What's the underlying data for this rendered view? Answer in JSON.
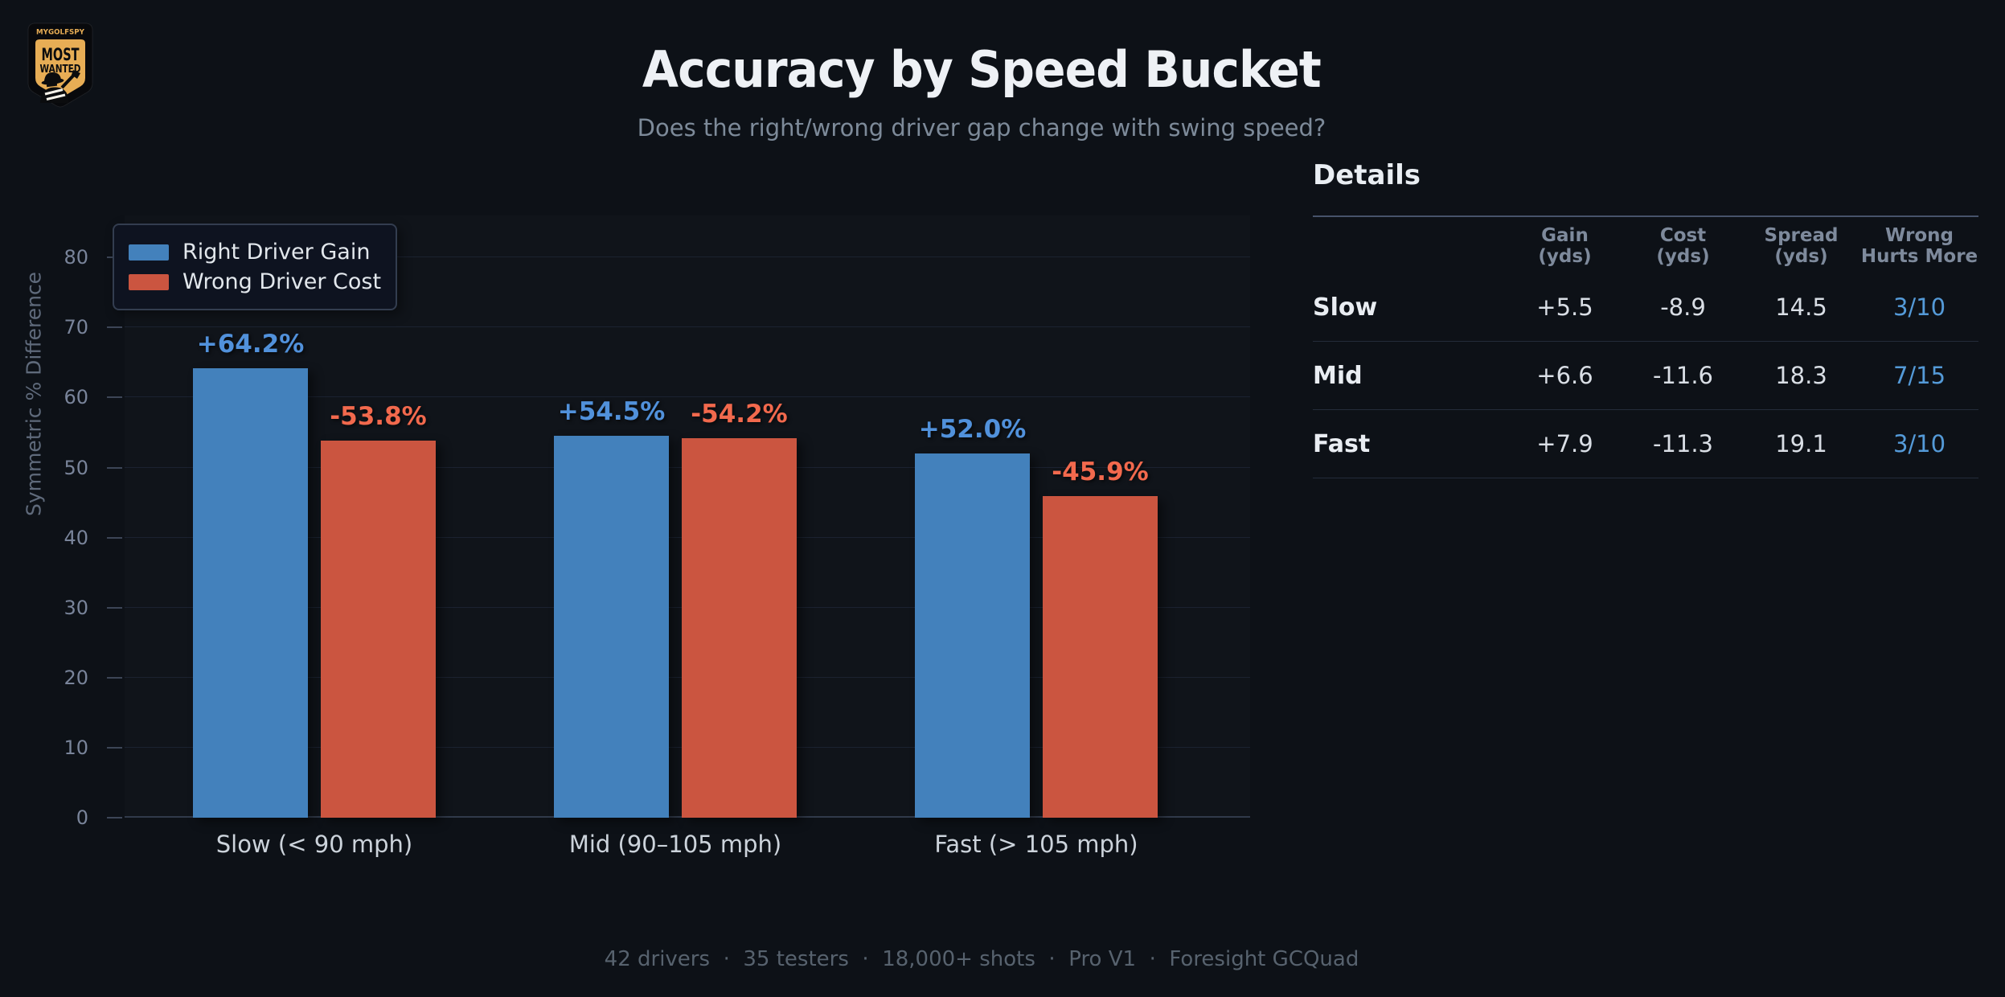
{
  "header": {
    "title": "Accuracy by Speed Bucket",
    "subtitle": "Does the right/wrong driver gap change with swing speed?"
  },
  "logo": {
    "brand": "MYGOLFSPY",
    "line1": "MOST",
    "line2": "WANTED",
    "gold": "#e7ad55"
  },
  "chart_data": {
    "type": "bar",
    "title": "Accuracy by Speed Bucket",
    "subtitle": "Does the right/wrong driver gap change with swing speed?",
    "categories": [
      "Slow (< 90 mph)",
      "Mid (90–105 mph)",
      "Fast (> 105 mph)"
    ],
    "series": [
      {
        "name": "Right Driver Gain",
        "color": "#4381bc",
        "label_color": "#5191db",
        "values": [
          64.2,
          54.5,
          52.0
        ],
        "labels": [
          "+64.2%",
          "+54.5%",
          "+52.0%"
        ]
      },
      {
        "name": "Wrong Driver Cost",
        "color": "#cb5540",
        "label_color": "#f2694d",
        "values": [
          53.8,
          54.2,
          45.9
        ],
        "labels": [
          "-53.8%",
          "-54.2%",
          "-45.9%"
        ]
      }
    ],
    "xlabel": "",
    "ylabel": "Symmetric % Difference",
    "yticks": [
      0,
      10,
      20,
      30,
      40,
      50,
      60,
      70,
      80
    ],
    "ylim": [
      0,
      86
    ],
    "grid": true,
    "legend_position": "upper left"
  },
  "details": {
    "title": "Details",
    "wrong_color": "#549ad8",
    "columns": [
      {
        "line1": "Gain",
        "line2": "(yds)"
      },
      {
        "line1": "Cost",
        "line2": "(yds)"
      },
      {
        "line1": "Spread",
        "line2": "(yds)"
      },
      {
        "line1": "Wrong",
        "line2": "Hurts More"
      }
    ],
    "rows": [
      {
        "label": "Slow",
        "gain": "+5.5",
        "cost": "-8.9",
        "spread": "14.5",
        "wrong_hurts_more": "3/10"
      },
      {
        "label": "Mid",
        "gain": "+6.6",
        "cost": "-11.6",
        "spread": "18.3",
        "wrong_hurts_more": "7/15"
      },
      {
        "label": "Fast",
        "gain": "+7.9",
        "cost": "-11.3",
        "spread": "19.1",
        "wrong_hurts_more": "3/10"
      }
    ]
  },
  "footer": {
    "text": "42 drivers  ·  35 testers  ·  18,000+ shots  ·  Pro V1  ·  Foresight GCQuad"
  }
}
